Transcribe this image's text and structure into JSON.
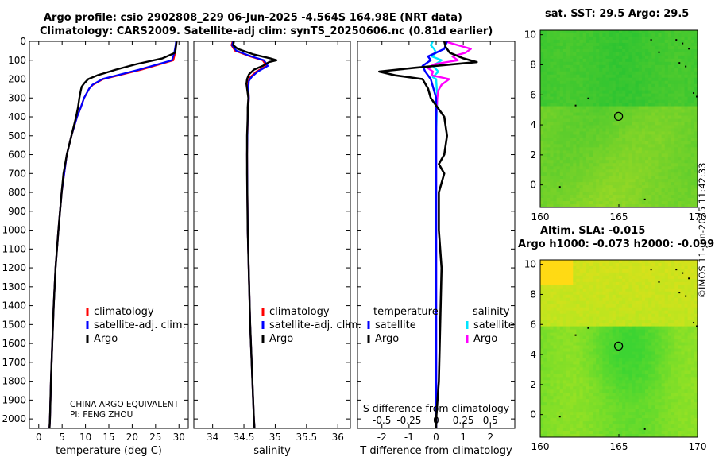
{
  "titles": {
    "line1": "Argo profile: csio 2902808_229 06-Jun-2025 -4.564S 164.98E (NRT data)",
    "line2": "Climatology: CARS2009. Satellite-adj clim: synTS_20250606.nc (0.81d earlier)",
    "sst_map": "sat. SST: 29.5 Argo: 29.5",
    "sla_map_line1": "Altim. SLA: -0.015",
    "sla_map_line2": "Argo h1000: -0.073 h2000: -0.099"
  },
  "stamp": "©IMOS 11-Jun-2025 11:42:33",
  "colors": {
    "climatology": "#ff0000",
    "satellite_adj": "#0000ff",
    "argo": "#000000",
    "sat_salinity": "#00e5ff",
    "argo_salinity": "#ff00ff"
  },
  "chart_data": [
    {
      "type": "line",
      "name": "temperature",
      "xlabel": "temperature (deg C)",
      "ylabel": "",
      "xlim": [
        -2,
        32
      ],
      "ylim": [
        2050,
        0
      ],
      "xticks": [
        0,
        5,
        10,
        15,
        20,
        25,
        30
      ],
      "yticks": [
        0,
        100,
        200,
        300,
        400,
        500,
        600,
        700,
        800,
        900,
        1000,
        1100,
        1200,
        1300,
        1400,
        1500,
        1600,
        1700,
        1800,
        1900,
        2000
      ],
      "legend": [
        "climatology",
        "satellite-adj. clim.",
        "Argo"
      ],
      "legend_placement": "center-right",
      "annotation": [
        "CHINA ARGO EQUIVALENT",
        "PI: FENG ZHOU"
      ],
      "series": [
        {
          "name": "climatology",
          "depth": [
            0,
            20,
            60,
            100,
            150,
            200,
            230,
            250,
            300,
            350,
            400,
            500,
            600,
            800,
            1000,
            1200,
            1400,
            1600,
            1800,
            2000,
            2050
          ],
          "values": [
            29.5,
            29.4,
            29.2,
            28.8,
            22,
            13.8,
            11.6,
            10.8,
            9.7,
            9.0,
            8.2,
            7.0,
            6.0,
            4.9,
            4.2,
            3.6,
            3.2,
            2.9,
            2.6,
            2.4,
            2.3
          ]
        },
        {
          "name": "satellite-adj. clim.",
          "depth": [
            0,
            20,
            60,
            100,
            150,
            200,
            230,
            250,
            300,
            350,
            400,
            500,
            600,
            800,
            1000,
            1200,
            1400,
            1600,
            1800,
            2000,
            2050
          ],
          "values": [
            29.4,
            29.3,
            29.0,
            28.5,
            21.5,
            13.6,
            11.5,
            10.8,
            9.7,
            9.0,
            8.2,
            7.0,
            6.0,
            4.9,
            4.2,
            3.6,
            3.2,
            2.9,
            2.6,
            2.4,
            2.3
          ]
        },
        {
          "name": "Argo",
          "depth": [
            0,
            20,
            60,
            90,
            120,
            150,
            180,
            200,
            220,
            240,
            260,
            300,
            350,
            400,
            500,
            600,
            700,
            800,
            1000,
            1200,
            1400,
            1600,
            1800,
            2000,
            2050
          ],
          "values": [
            29.5,
            29.4,
            29.2,
            26.5,
            21,
            16.5,
            12.5,
            10.6,
            9.8,
            9.2,
            9.0,
            8.7,
            8.4,
            8.0,
            7.0,
            6.0,
            5.3,
            4.9,
            4.2,
            3.6,
            3.2,
            2.9,
            2.6,
            2.4,
            2.3
          ]
        }
      ]
    },
    {
      "type": "line",
      "name": "salinity",
      "xlabel": "salinity",
      "xlim": [
        33.7,
        36.2
      ],
      "ylim": [
        2050,
        0
      ],
      "xticks": [
        34,
        34.5,
        35,
        35.5,
        36
      ],
      "legend": [
        "climatology",
        "satellite-adj. clim.",
        "Argo"
      ],
      "legend_placement": "center-right",
      "series": [
        {
          "name": "climatology",
          "depth": [
            0,
            20,
            50,
            80,
            100,
            130,
            160,
            190,
            210,
            250,
            300,
            400,
            600,
            1000,
            1500,
            2000,
            2050
          ],
          "values": [
            34.32,
            34.3,
            34.36,
            34.6,
            34.8,
            34.86,
            34.7,
            34.6,
            34.57,
            34.57,
            34.58,
            34.56,
            34.55,
            34.56,
            34.6,
            34.66,
            34.67
          ]
        },
        {
          "name": "satellite-adj. clim.",
          "depth": [
            0,
            20,
            50,
            80,
            100,
            130,
            160,
            190,
            210,
            250,
            300,
            400,
            600,
            1000,
            1500,
            2000,
            2050
          ],
          "values": [
            34.33,
            34.31,
            34.38,
            34.62,
            34.82,
            34.88,
            34.72,
            34.62,
            34.58,
            34.57,
            34.58,
            34.56,
            34.55,
            34.56,
            34.6,
            34.66,
            34.67
          ]
        },
        {
          "name": "Argo",
          "depth": [
            0,
            20,
            40,
            70,
            90,
            100,
            110,
            130,
            150,
            175,
            200,
            225,
            250,
            300,
            350,
            400,
            500,
            700,
            1000,
            1500,
            2000,
            2050
          ],
          "values": [
            34.34,
            34.33,
            34.4,
            34.66,
            34.92,
            35.02,
            34.9,
            34.8,
            34.66,
            34.58,
            34.55,
            34.54,
            34.55,
            34.57,
            34.56,
            34.56,
            34.55,
            34.55,
            34.56,
            34.6,
            34.66,
            34.67
          ]
        }
      ]
    },
    {
      "type": "line",
      "name": "difference from climatology",
      "xlabel": "T difference from climatology",
      "xlabel_top": "S difference from climatology",
      "xlim": [
        -2.9,
        2.9
      ],
      "ylim": [
        2050,
        0
      ],
      "xticks": [
        -2,
        -1,
        0,
        1,
        2
      ],
      "s_ticks": [
        "-0.5",
        "-0.25",
        "0",
        "0.25",
        "0.5"
      ],
      "legend_temperature": {
        "title": "temperature",
        "items": [
          "satellite",
          "Argo"
        ]
      },
      "legend_salinity": {
        "title": "salinity",
        "items": [
          "satellite",
          "Argo"
        ]
      },
      "series": [
        {
          "name": "temperature satellite",
          "depth": [
            0,
            40,
            80,
            100,
            130,
            160,
            200,
            300,
            500,
            1000,
            1500,
            2000,
            2050
          ],
          "values": [
            0.4,
            0.3,
            -0.3,
            -0.2,
            -0.5,
            -0.4,
            -0.2,
            0.0,
            0.0,
            0.0,
            0.0,
            0.0,
            0.0
          ]
        },
        {
          "name": "temperature Argo",
          "depth": [
            0,
            30,
            60,
            90,
            110,
            140,
            160,
            180,
            200,
            250,
            300,
            400,
            500,
            600,
            650,
            700,
            800,
            1000,
            1200,
            1500,
            1800,
            2000,
            2050
          ],
          "values": [
            0.3,
            0.35,
            0.5,
            1.0,
            1.5,
            -0.8,
            -2.1,
            -1.5,
            -0.5,
            -0.3,
            -0.2,
            0.3,
            0.4,
            0.3,
            0.1,
            0.3,
            0.1,
            0.1,
            0.2,
            0.15,
            0.1,
            0.0,
            0.0
          ]
        },
        {
          "name": "salinity satellite",
          "depth": [
            0,
            20,
            40,
            60,
            80,
            100,
            130,
            160,
            190,
            200,
            300,
            500,
            1000,
            1500,
            2000,
            2050
          ],
          "values": [
            -0.03,
            -0.05,
            -0.02,
            0.0,
            -0.04,
            0.05,
            -0.03,
            0.02,
            -0.03,
            0.0,
            0.01,
            0.0,
            0.0,
            0.0,
            0.0,
            0.0
          ]
        },
        {
          "name": "salinity Argo",
          "depth": [
            0,
            20,
            40,
            60,
            80,
            100,
            120,
            140,
            160,
            180,
            200,
            230,
            260,
            300,
            400,
            600,
            800,
            1000,
            1500,
            2000,
            2050
          ],
          "values": [
            0.08,
            0.2,
            0.32,
            0.27,
            0.15,
            0.2,
            -0.01,
            -0.08,
            -0.03,
            -0.04,
            0.12,
            0.05,
            0.02,
            0.01,
            0.0,
            0.0,
            0.0,
            0.0,
            0.0,
            0.0,
            0.0
          ]
        }
      ]
    },
    {
      "type": "heatmap",
      "name": "sat SST map",
      "title": "sat. SST: 29.5 Argo: 29.5",
      "xlim": [
        160,
        170
      ],
      "ylim": [
        -1.5,
        10.3
      ],
      "xticks": [
        160,
        165,
        170
      ],
      "yticks": [
        0,
        2,
        4,
        6,
        8,
        10
      ],
      "profile_marker": {
        "lon": 164.98,
        "lat": 4.564
      }
    },
    {
      "type": "heatmap",
      "name": "altimetry SLA map",
      "title": "Altim. SLA: -0.015",
      "xlim": [
        160,
        170
      ],
      "ylim": [
        -1.5,
        10.3
      ],
      "xticks": [
        160,
        165,
        170
      ],
      "yticks": [
        0,
        2,
        4,
        6,
        8,
        10
      ],
      "profile_marker": {
        "lon": 164.98,
        "lat": 4.564
      }
    }
  ]
}
